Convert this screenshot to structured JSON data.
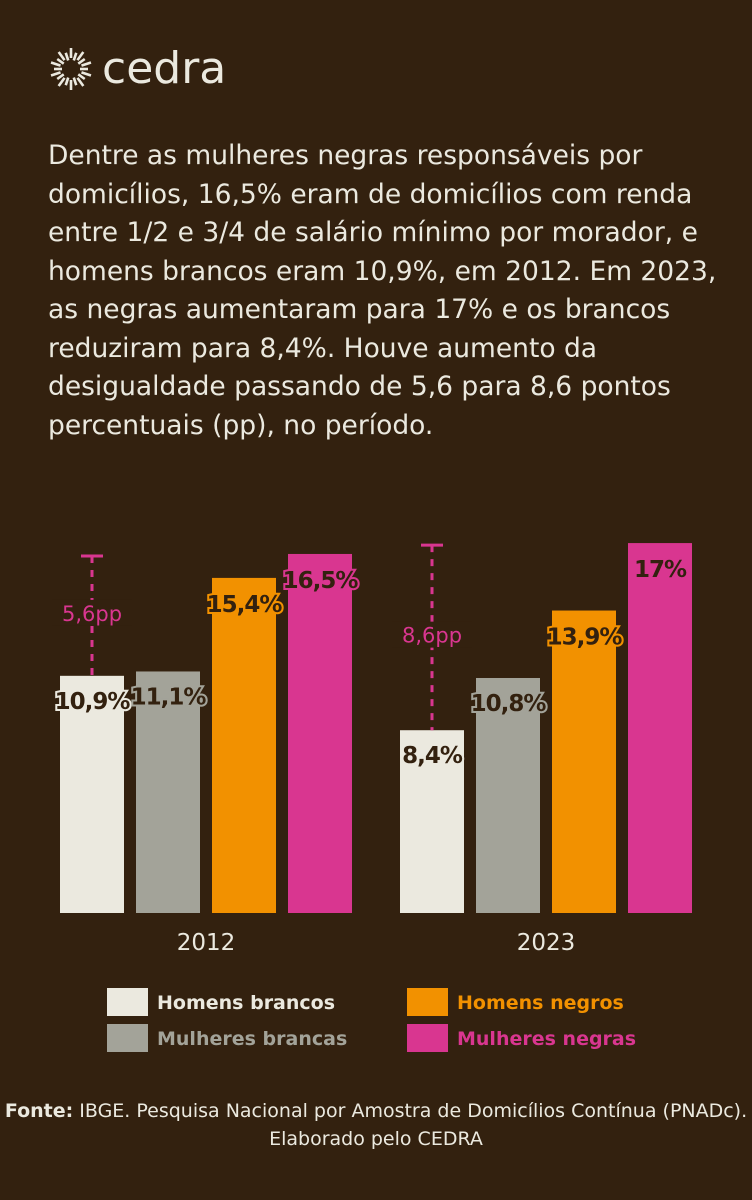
{
  "brand": {
    "name": "cedra",
    "logo_icon": "sun-burst-icon"
  },
  "description": "Dentre as mulheres negras responsáveis por domicílios, 16,5% eram de domicílios com renda entre 1/2 e 3/4 de salário mínimo por morador, e homens brancos eram 10,9%, em 2012. Em 2023, as negras aumentaram para 17% e os brancos reduziram para 8,4%. Houve aumento da desigualdade passando de 5,6 para 8,6 pontos percentuais (pp), no período.",
  "source": {
    "label": "Fonte:",
    "text": " IBGE. Pesquisa Nacional por Amostra de Domicílios Contínua (PNADc). Elaborado pelo CEDRA"
  },
  "colors": {
    "background": "#33210f",
    "homens_brancos": "#ebe9df",
    "mulheres_brancas": "#a3a399",
    "homens_negros": "#f29100",
    "mulheres_negras": "#d93690"
  },
  "chart_data": {
    "type": "bar",
    "categories": [
      "2012",
      "2023"
    ],
    "series": [
      {
        "name": "Homens brancos",
        "values": [
          10.9,
          8.4
        ],
        "labels": [
          "10,9%",
          "8,4%"
        ],
        "color": "#ebe9df"
      },
      {
        "name": "Mulheres brancas",
        "values": [
          11.1,
          10.8
        ],
        "labels": [
          "11,1%",
          "10,8%"
        ],
        "color": "#a3a399"
      },
      {
        "name": "Homens negros",
        "values": [
          15.4,
          13.9
        ],
        "labels": [
          "15,4%",
          "13,9%"
        ],
        "color": "#f29100"
      },
      {
        "name": "Mulheres negras",
        "values": [
          16.5,
          17
        ],
        "labels": [
          "16,5%",
          "17%"
        ],
        "color": "#d93690"
      }
    ],
    "annotations": [
      {
        "category": "2012",
        "from": 10.9,
        "to": 16.5,
        "label": "5,6pp"
      },
      {
        "category": "2023",
        "from": 8.4,
        "to": 17,
        "label": "8,6pp"
      }
    ],
    "ylim": [
      0,
      17.2
    ],
    "grid": false,
    "legend": "bottom"
  }
}
